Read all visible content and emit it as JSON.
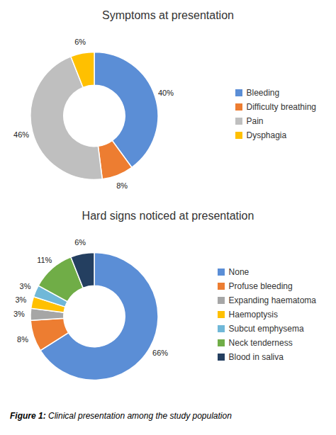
{
  "chart_data": [
    {
      "type": "pie",
      "title": "Symptoms at presentation",
      "categories": [
        "Bleeding",
        "Difficulty breathing",
        "Pain",
        "Dysphagia"
      ],
      "values": [
        40,
        8,
        46,
        6
      ],
      "value_labels": [
        "40%",
        "8%",
        "46%",
        "6%"
      ],
      "colors": [
        "#5B8ED6",
        "#ED7D31",
        "#BFBFBF",
        "#FFC000"
      ],
      "data_labels": true,
      "legend": "right"
    },
    {
      "type": "pie",
      "title": "Hard signs noticed at presentation",
      "categories": [
        "None",
        "Profuse bleeding",
        "Expanding haematoma",
        "Haemoptysis",
        "Subcut emphysema",
        "Neck tenderness",
        "Blood in saliva"
      ],
      "values": [
        66,
        8,
        3,
        3,
        3,
        11,
        6
      ],
      "value_labels": [
        "66%",
        "8%",
        "3%",
        "3%",
        "3%",
        "11%",
        "6%"
      ],
      "colors": [
        "#5B8ED6",
        "#ED7D31",
        "#A6A6A6",
        "#FFC000",
        "#70B8D8",
        "#70AD47",
        "#243F60"
      ],
      "data_labels": true,
      "legend": "right"
    }
  ],
  "caption": [
    "Figure 1:",
    "Clinical presentation among the study population"
  ]
}
